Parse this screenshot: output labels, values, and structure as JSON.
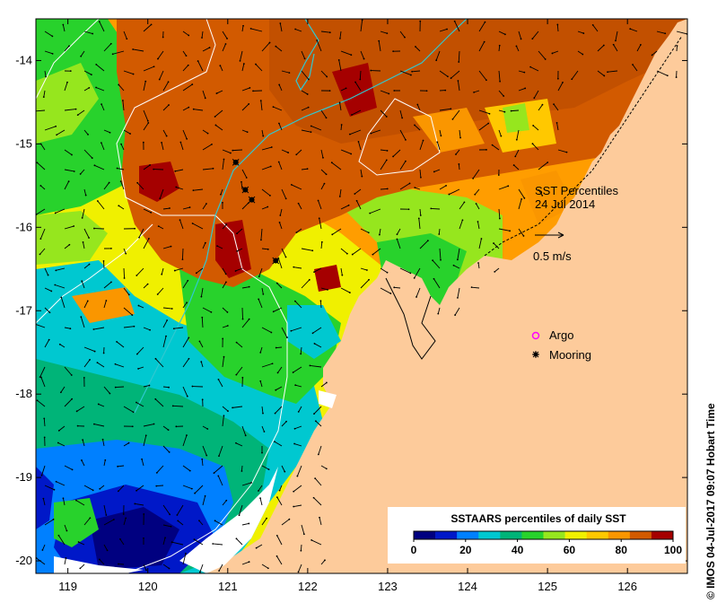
{
  "chart_data": {
    "type": "heatmap",
    "title": "SST Percentiles",
    "date": "24 Jul 2014",
    "xlim": [
      118.6,
      126.75
    ],
    "ylim": [
      -20.15,
      -13.5
    ],
    "x_ticks": [
      119,
      120,
      121,
      122,
      123,
      124,
      125,
      126
    ],
    "y_ticks": [
      -14,
      -15,
      -16,
      -17,
      -18,
      -19,
      -20
    ],
    "vector_scale_label": "0.5 m/s",
    "legend": {
      "title": "SSTAARS percentiles of daily SST",
      "range": [
        0,
        100
      ],
      "tick_values": [
        0,
        20,
        40,
        60,
        80,
        100
      ],
      "colors": [
        "#000080",
        "#0018c8",
        "#0080ff",
        "#00c8d0",
        "#00b478",
        "#28d22c",
        "#96e61e",
        "#f0f000",
        "#ffc800",
        "#fa9600",
        "#d25a00",
        "#a50000"
      ]
    },
    "markers": [
      {
        "name": "Argo",
        "color": "#ff00ff",
        "shape": "open-circle",
        "points": []
      },
      {
        "name": "Mooring",
        "color": "#000000",
        "shape": "filled-dot",
        "points": [
          [
            121.1,
            -15.22
          ],
          [
            121.22,
            -15.55
          ],
          [
            121.3,
            -15.67
          ],
          [
            121.6,
            -16.4
          ]
        ]
      }
    ],
    "land_color": "#fdcb9b",
    "credit": "© IMOS 04-Jul-2017 09:07 Hobart Time"
  }
}
